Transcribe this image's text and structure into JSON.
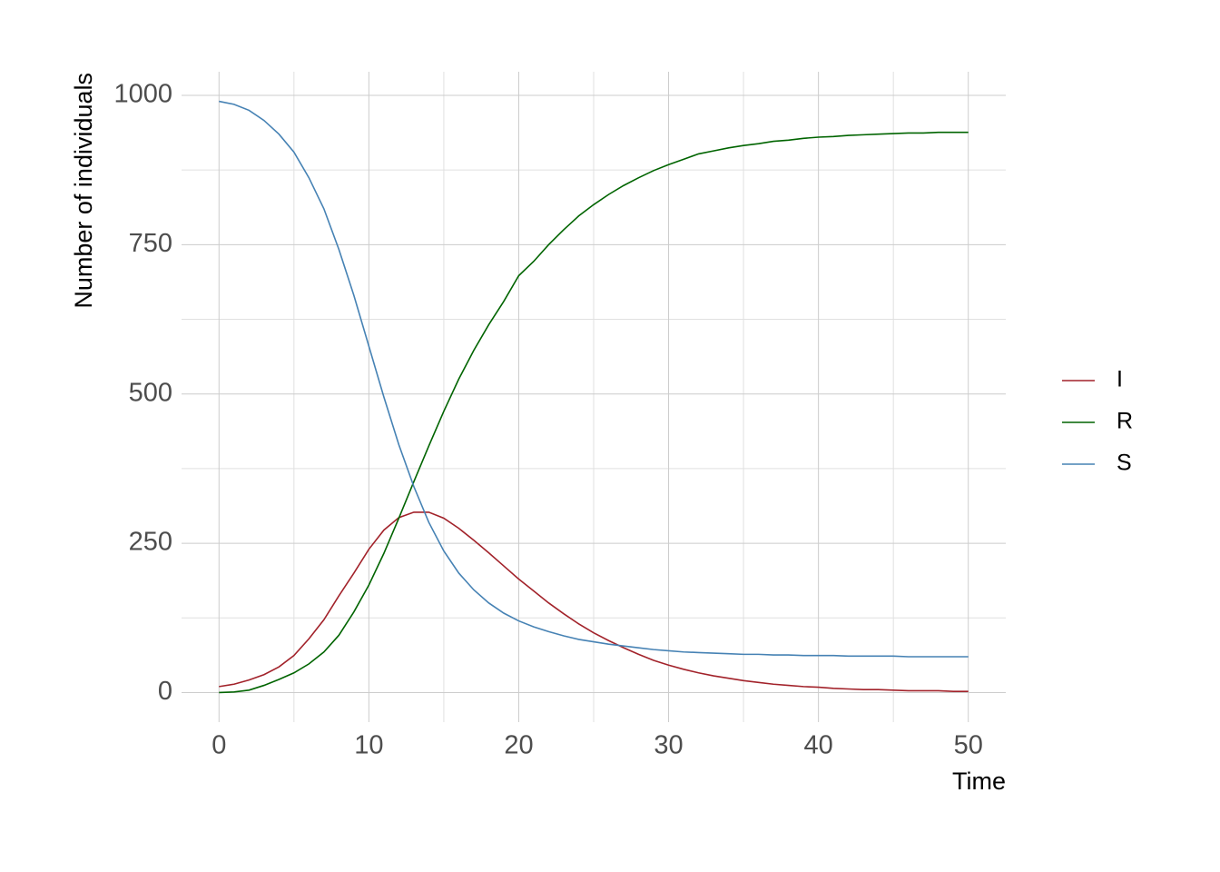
{
  "chart_data": {
    "type": "line",
    "x_label": "Time",
    "y_label": "Number of individuals",
    "x": [
      0,
      1,
      2,
      3,
      4,
      5,
      6,
      7,
      8,
      9,
      10,
      11,
      12,
      13,
      14,
      15,
      16,
      17,
      18,
      19,
      20,
      21,
      22,
      23,
      24,
      25,
      26,
      27,
      28,
      29,
      30,
      31,
      32,
      33,
      34,
      35,
      36,
      37,
      38,
      39,
      40,
      41,
      42,
      43,
      44,
      45,
      46,
      47,
      48,
      49,
      50
    ],
    "series": [
      {
        "name": "I",
        "color": "#a2222a",
        "values": [
          10,
          14,
          21,
          30,
          43,
          62,
          90,
          122,
          162,
          200,
          240,
          272,
          293,
          302,
          302,
          292,
          275,
          255,
          234,
          212,
          190,
          170,
          150,
          132,
          115,
          100,
          87,
          75,
          64,
          54,
          46,
          39,
          33,
          28,
          24,
          20,
          17,
          14,
          12,
          10,
          9,
          7,
          6,
          5,
          5,
          4,
          3,
          3,
          3,
          2,
          2
        ]
      },
      {
        "name": "R",
        "color": "#006400",
        "values": [
          0,
          1,
          4,
          12,
          22,
          33,
          48,
          68,
          96,
          135,
          180,
          233,
          292,
          353,
          413,
          471,
          525,
          573,
          616,
          655,
          698,
          722,
          750,
          775,
          798,
          817,
          834,
          849,
          862,
          874,
          884,
          893,
          902,
          907,
          912,
          916,
          919,
          923,
          925,
          928,
          930,
          931,
          933,
          934,
          935,
          936,
          937,
          937,
          938,
          938,
          938
        ]
      },
      {
        "name": "S",
        "color": "#4682b4",
        "values": [
          990,
          985,
          975,
          958,
          935,
          905,
          862,
          810,
          742,
          665,
          580,
          495,
          415,
          345,
          285,
          237,
          200,
          172,
          150,
          133,
          120,
          110,
          102,
          95,
          89,
          85,
          81,
          78,
          75,
          72,
          70,
          68,
          67,
          66,
          65,
          64,
          64,
          63,
          63,
          62,
          62,
          62,
          61,
          61,
          61,
          61,
          60,
          60,
          60,
          60,
          60
        ]
      }
    ],
    "xlim": [
      -2.5,
      52.5
    ],
    "ylim": [
      -49.5,
      1039.5
    ],
    "xticks": [
      0,
      10,
      20,
      30,
      40,
      50
    ],
    "yticks": [
      0,
      250,
      500,
      750,
      1000
    ],
    "x_minor_ticks": [
      5,
      15,
      25,
      35,
      45
    ],
    "y_minor_ticks": [
      125,
      375,
      625,
      875
    ],
    "grid": true,
    "legend": "right"
  }
}
